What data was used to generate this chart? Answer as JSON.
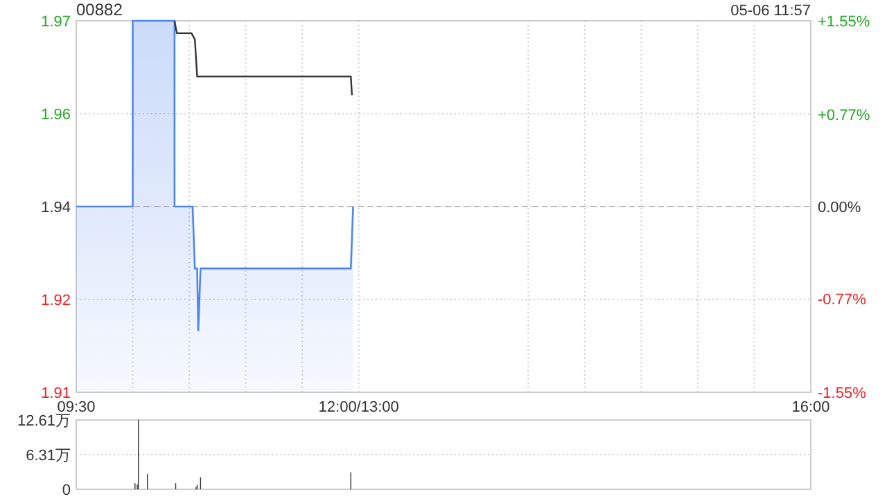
{
  "chart_data": [
    {
      "type": "line",
      "title": "00882",
      "annotations": [
        "05-06 11:57"
      ],
      "xlim": [
        9.5,
        16
      ],
      "xticks": [
        {
          "value": 9.5,
          "label": "09:30"
        },
        {
          "value": 10,
          "label": null
        },
        {
          "value": 10.5,
          "label": null
        },
        {
          "value": 11,
          "label": null
        },
        {
          "value": 11.5,
          "label": null
        },
        {
          "value": 12,
          "label": "12:00/13:00"
        },
        {
          "value": 13.5,
          "label": null
        },
        {
          "value": 14,
          "label": null
        },
        {
          "value": 14.5,
          "label": null
        },
        {
          "value": 15,
          "label": null
        },
        {
          "value": 15.5,
          "label": null
        },
        {
          "value": 16,
          "label": "16:00"
        }
      ],
      "ylim": [
        1.91,
        1.97
      ],
      "yticks": [
        1.97,
        {
          "value": 1.955,
          "label": "1.96"
        },
        1.94,
        {
          "value": 1.925,
          "label": "1.92"
        },
        1.91
      ],
      "y2lim": [
        -1.55,
        1.55
      ],
      "y2ticks": [
        {
          "value": 1.55,
          "label": "+1.55%"
        },
        {
          "value": 0.77,
          "label": "+0.77%"
        },
        {
          "value": 0,
          "label": "0.00%"
        },
        {
          "value": -0.77,
          "label": "-0.77%"
        },
        {
          "value": -1.55,
          "label": "-1.55%"
        }
      ],
      "grid": true,
      "ref_lines": [
        {
          "axis": "y",
          "value": 1.94,
          "color": "#bbbbbb",
          "line_style": "dashed"
        }
      ],
      "series": [
        {
          "type": "area",
          "color": "#4f86ec",
          "x": [
            9.5,
            10.0,
            10.0,
            10.37,
            10.37,
            10.53,
            10.55,
            10.57,
            10.58,
            10.6,
            11.93,
            11.95
          ],
          "values": [
            1.94,
            1.94,
            1.97,
            1.97,
            1.94,
            1.94,
            1.93,
            1.93,
            1.92,
            1.93,
            1.93,
            1.94
          ]
        },
        {
          "color": "#333333",
          "x": [
            10.37,
            10.39,
            10.52,
            10.55,
            10.57,
            11.93,
            11.94
          ],
          "values": [
            1.97,
            1.968,
            1.968,
            1.967,
            1.961,
            1.961,
            1.958
          ]
        }
      ]
    },
    {
      "type": "bar",
      "color": "#333333",
      "xlim": [
        9.5,
        16
      ],
      "ylim": [
        0,
        12.61
      ],
      "yticks": [
        0,
        {
          "value": 6.31,
          "label": "6.31万"
        },
        {
          "value": 12.61,
          "label": "12.61万"
        }
      ],
      "grid": "y",
      "tick_labels": "y",
      "x": [
        10.02,
        10.04,
        10.05,
        10.13,
        10.38,
        10.56,
        10.57,
        10.6,
        11.93
      ],
      "values": [
        1.1,
        0.9,
        12.61,
        2.8,
        1.1,
        0.4,
        0.8,
        2.2,
        3.1
      ]
    }
  ]
}
